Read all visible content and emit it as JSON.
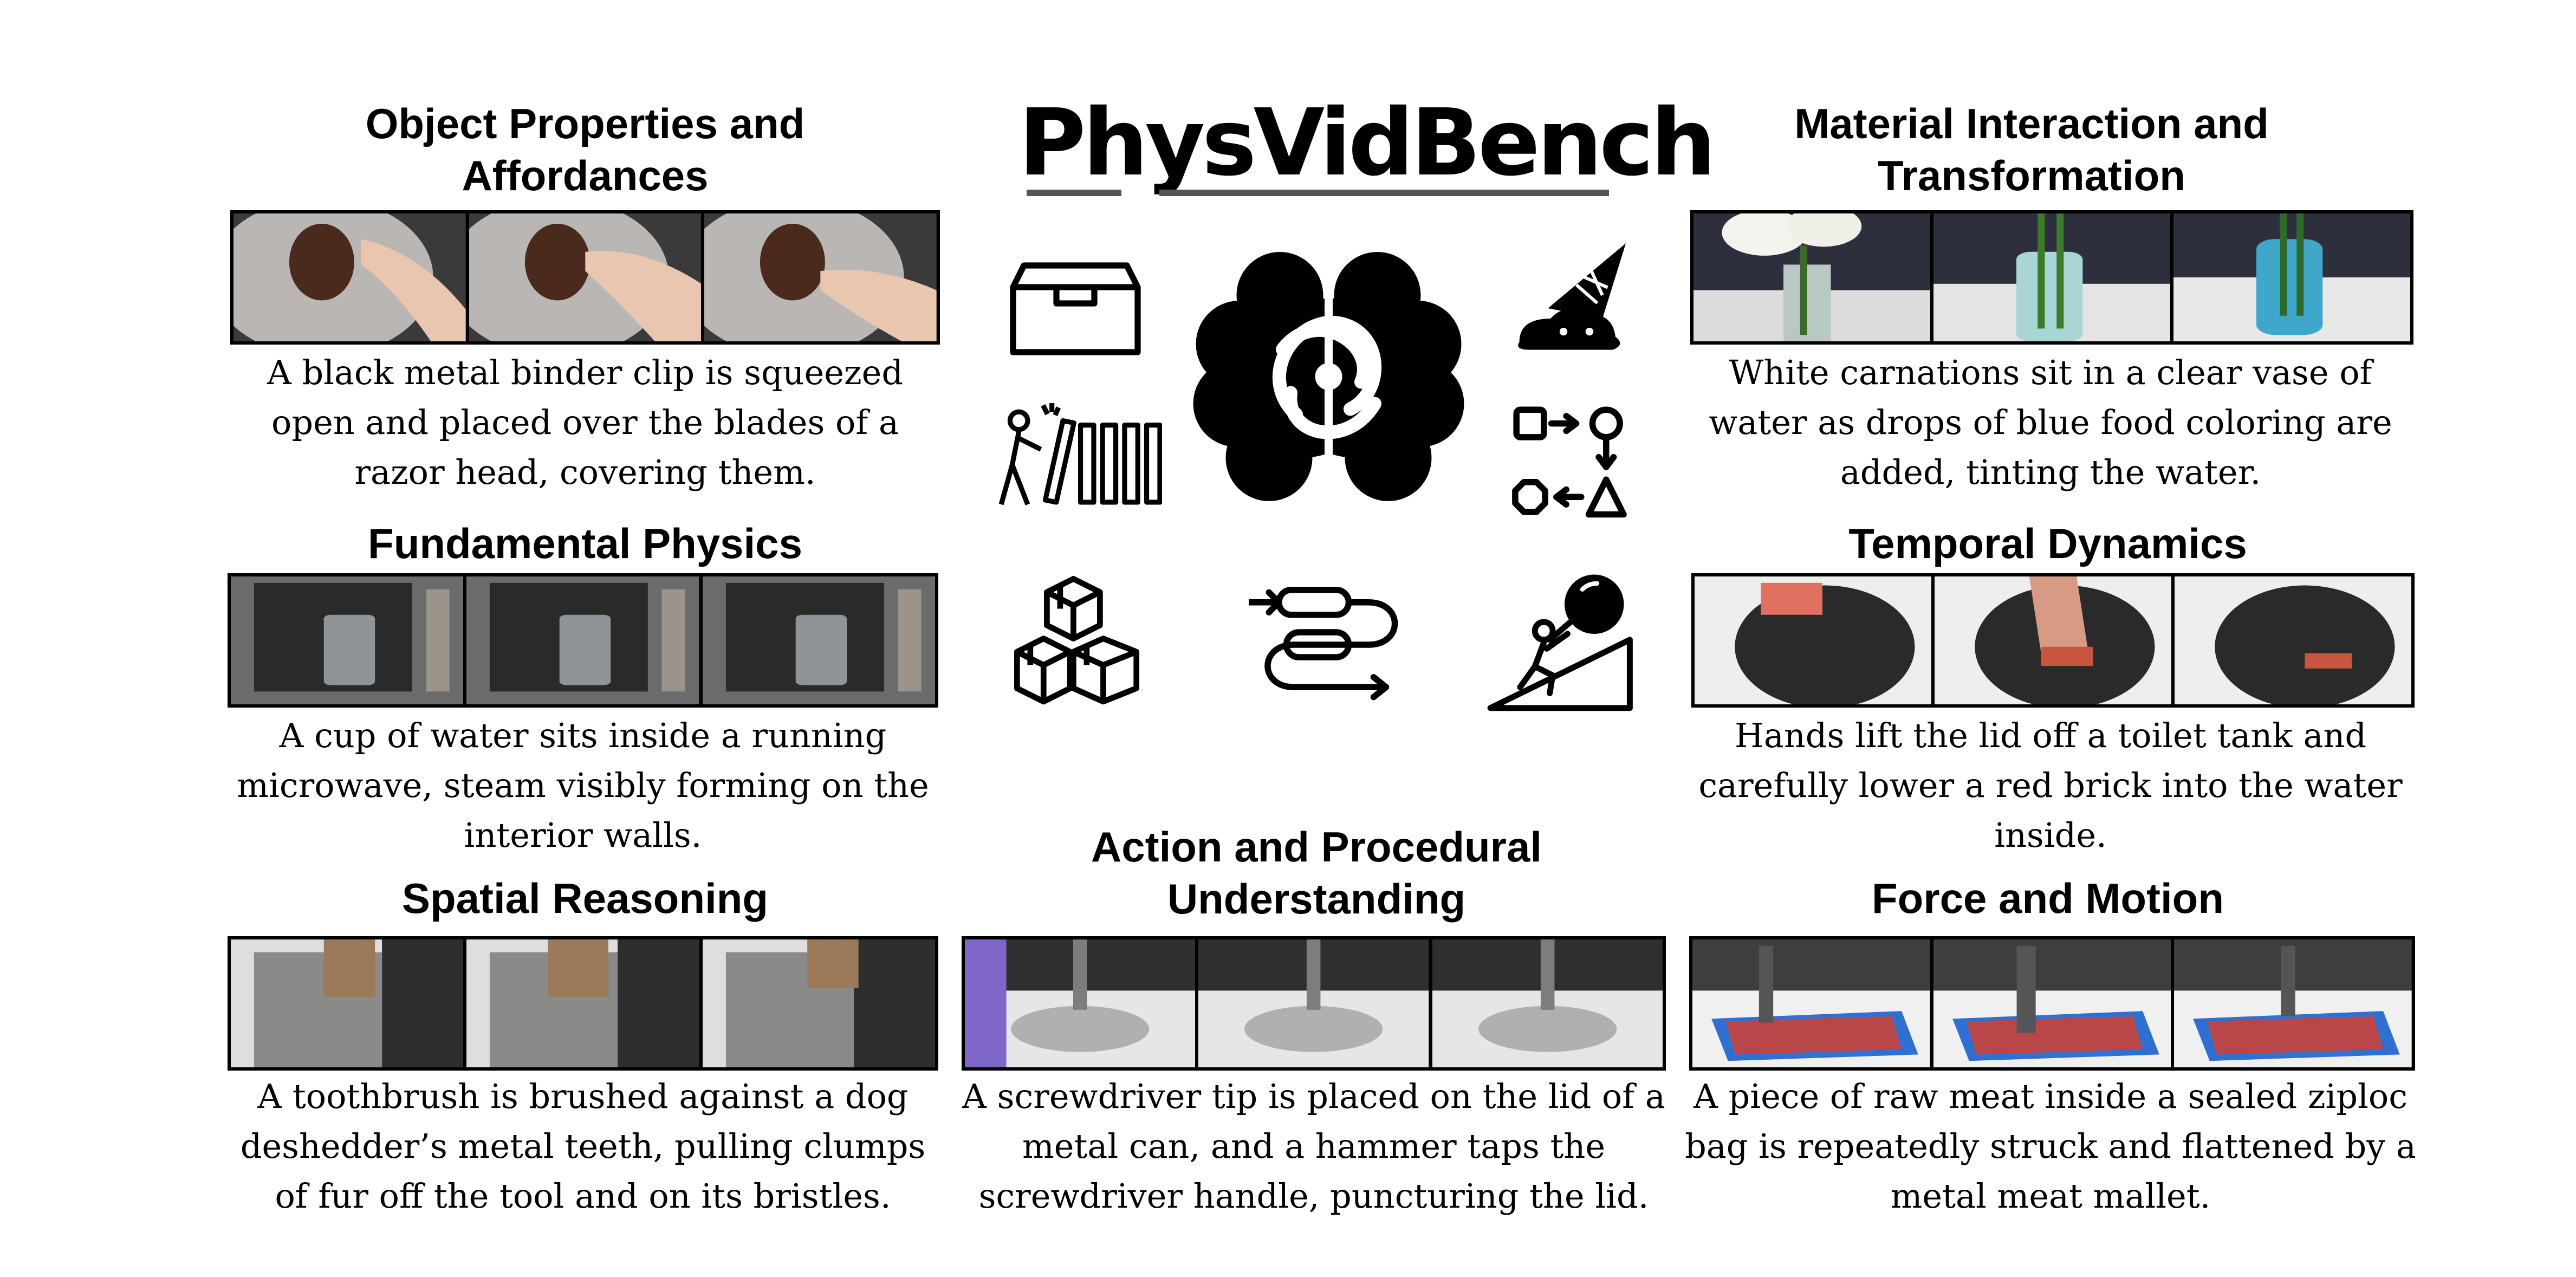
{
  "title": "PhysVidBench",
  "panels": {
    "object_properties": {
      "heading": "Object Properties and Affordances",
      "caption": "A black metal binder clip is squeezed open and placed over the blades of a razor head, covering them."
    },
    "material_interaction": {
      "heading": "Material Interaction and Transformation",
      "caption": "White carnations sit in a clear vase of water as drops of blue food coloring are added, tinting the water."
    },
    "fundamental_physics": {
      "heading": "Fundamental Physics",
      "caption": "A cup of water sits inside a running microwave, steam visibly forming on the interior walls."
    },
    "temporal_dynamics": {
      "heading": "Temporal Dynamics",
      "caption": "Hands lift the lid off a toilet tank and carefully lower a red brick into the water inside."
    },
    "spatial_reasoning": {
      "heading": "Spatial Reasoning",
      "caption": "A toothbrush is brushed against a dog deshedder’s metal teeth, pulling clumps of fur off the tool and on its  bristles."
    },
    "action_procedural": {
      "heading": "Action and Procedural Understanding",
      "caption": "A screwdriver tip is placed on the lid of a metal can, and a hammer taps the screwdriver handle, puncturing the lid."
    },
    "force_motion": {
      "heading": "Force and Motion",
      "caption": "A piece of raw meat inside a sealed ziploc bag is repeatedly struck and flattened by a metal meat mallet."
    }
  },
  "icons": [
    "drawer-box-icon",
    "brain-atom-icon",
    "melting-ice-cream-icon",
    "domino-push-icon",
    "shape-transform-icon",
    "stacked-boxes-icon",
    "process-flow-icon",
    "sisyphus-boulder-icon"
  ]
}
